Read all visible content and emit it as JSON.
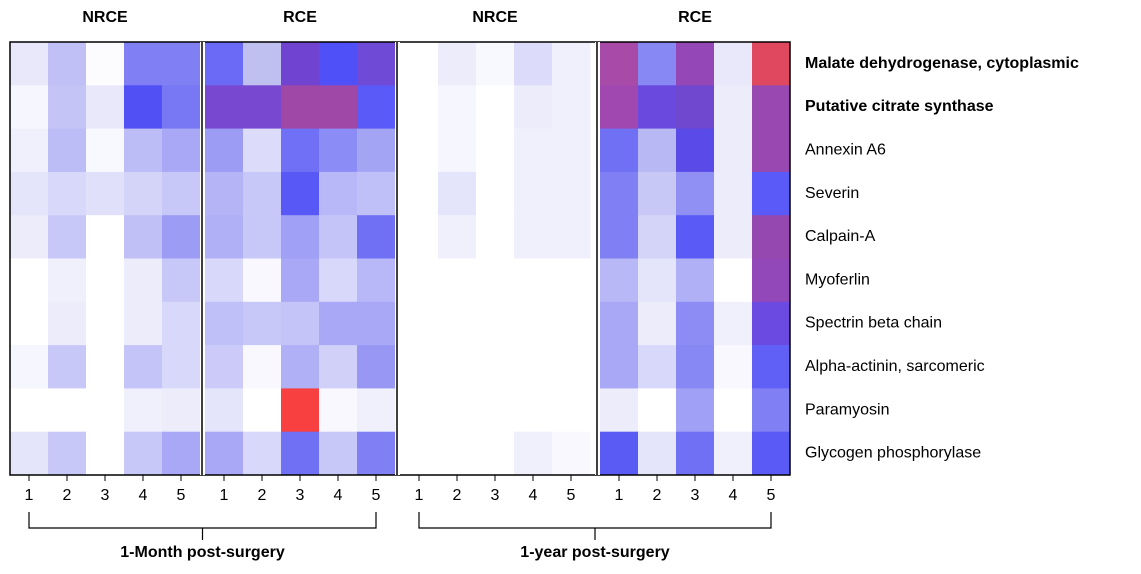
{
  "chart_data": {
    "type": "heatmap",
    "groups": [
      {
        "name": "NRCE",
        "columns": [
          "1",
          "2",
          "3",
          "4",
          "5"
        ]
      },
      {
        "name": "RCE",
        "columns": [
          "1",
          "2",
          "3",
          "4",
          "5"
        ]
      },
      {
        "name": "NRCE",
        "columns": [
          "1",
          "2",
          "3",
          "4",
          "5"
        ]
      },
      {
        "name": "RCE",
        "columns": [
          "1",
          "2",
          "3",
          "4",
          "5"
        ]
      }
    ],
    "periods": [
      {
        "label": "1-Month post-surgery",
        "groups": [
          0,
          1
        ]
      },
      {
        "label": "1-year post-surgery",
        "groups": [
          2,
          3
        ]
      }
    ],
    "rows": [
      "Malate dehydrogenase, cytoplasmic",
      "Putative citrate synthase",
      "Annexin A6",
      "Severin",
      "Calpain-A",
      "Myoferlin",
      "Spectrin beta chain",
      "Alpha-actinin, sarcomeric",
      "Paramyosin",
      "Glycogen phosphorylase"
    ],
    "bold_rows": [
      0,
      1
    ],
    "cells": [
      [
        "#e8e8fa",
        "#c0c0f6",
        "#fcfcff",
        "#8080f4",
        "#8080f4",
        "#6a6af6",
        "#c0c0f0",
        "#7044d0",
        "#5050f8",
        "#6e4ad6",
        "#ffffff",
        "#ececfa",
        "#f8f8ff",
        "#dcdcfa",
        "#f0f0fc",
        "#a84aa8",
        "#8888f4",
        "#9448b8",
        "#e8e8fa",
        "#e04860"
      ],
      [
        "#f6f6fe",
        "#c4c4f6",
        "#e8e8fa",
        "#5050f4",
        "#7878f4",
        "#7848d0",
        "#7848d0",
        "#a048a8",
        "#a048a8",
        "#5a5af8",
        "#ffffff",
        "#f6f6fe",
        "#ffffff",
        "#ececfa",
        "#f0f0fc",
        "#a048b0",
        "#6a4ade",
        "#7048d0",
        "#ececfa",
        "#9848b0"
      ],
      [
        "#f0f0fc",
        "#bcbcf6",
        "#f8f8ff",
        "#bcbcf6",
        "#a8a8f6",
        "#9c9cf4",
        "#dcdcfa",
        "#7070f6",
        "#8c8cf6",
        "#a4a4f4",
        "#ffffff",
        "#f6f6fe",
        "#ffffff",
        "#f0f0fc",
        "#f0f0fc",
        "#7070f4",
        "#b8b8f4",
        "#5a4ae8",
        "#ececfa",
        "#9848b0"
      ],
      [
        "#e4e4fa",
        "#d8d8fa",
        "#e0e0fa",
        "#d4d4f8",
        "#c8c8f8",
        "#b4b4f6",
        "#c8c8f8",
        "#5858f6",
        "#b8b8f8",
        "#c0c0f8",
        "#ffffff",
        "#e4e4fa",
        "#ffffff",
        "#f0f0fc",
        "#f0f0fc",
        "#8080f4",
        "#c8c8f6",
        "#9090f4",
        "#ececfa",
        "#5a5af8"
      ],
      [
        "#ececfa",
        "#c8c8f8",
        "#ffffff",
        "#c0c0f6",
        "#9c9cf4",
        "#b0b0f6",
        "#c8c8f8",
        "#a0a0f6",
        "#c4c4f8",
        "#7070f4",
        "#ffffff",
        "#f0f0fc",
        "#ffffff",
        "#f0f0fc",
        "#f0f0fc",
        "#8080f4",
        "#d4d4f8",
        "#5a5af6",
        "#ececfa",
        "#9448b0"
      ],
      [
        "#ffffff",
        "#f0f0fc",
        "#ffffff",
        "#ececfa",
        "#c8c8f8",
        "#d8d8fa",
        "#f8f8fe",
        "#a8a8f6",
        "#d8d8fa",
        "#b8b8f8",
        "#ffffff",
        "#ffffff",
        "#ffffff",
        "#ffffff",
        "#ffffff",
        "#b8b8f6",
        "#e4e4fa",
        "#b0b0f6",
        "#ffffff",
        "#9248b8"
      ],
      [
        "#ffffff",
        "#ececfa",
        "#ffffff",
        "#ececfa",
        "#d8d8fa",
        "#c0c0f8",
        "#c8c8f8",
        "#c4c4f8",
        "#a8a8f6",
        "#a8a8f6",
        "#ffffff",
        "#ffffff",
        "#ffffff",
        "#ffffff",
        "#ffffff",
        "#a8a8f6",
        "#ececfa",
        "#8c8cf4",
        "#f0f0fc",
        "#6a4ae0"
      ],
      [
        "#f6f6fe",
        "#c8c8f8",
        "#ffffff",
        "#c4c4f8",
        "#d8d8fa",
        "#cccaf8",
        "#f8f8fe",
        "#b0b0f6",
        "#d0d0f8",
        "#9898f4",
        "#ffffff",
        "#ffffff",
        "#ffffff",
        "#ffffff",
        "#ffffff",
        "#a8a8f6",
        "#d8d8fa",
        "#8888f4",
        "#f8f8fe",
        "#6060f6"
      ],
      [
        "#ffffff",
        "#ffffff",
        "#ffffff",
        "#f0f0fc",
        "#ececfa",
        "#e4e4fa",
        "#ffffff",
        "#f84040",
        "#f8f8fe",
        "#f0f0fc",
        "#ffffff",
        "#ffffff",
        "#ffffff",
        "#ffffff",
        "#ffffff",
        "#ececfa",
        "#ffffff",
        "#a0a0f6",
        "#ffffff",
        "#8080f4"
      ],
      [
        "#e4e4fa",
        "#c8c8f8",
        "#ffffff",
        "#c8c8f8",
        "#a8a8f6",
        "#a8a8f6",
        "#d8d8fa",
        "#7070f4",
        "#c8c8f8",
        "#8080f4",
        "#ffffff",
        "#ffffff",
        "#ffffff",
        "#f0f0fc",
        "#f8f8fe",
        "#5a5af4",
        "#e4e4fa",
        "#7070f4",
        "#f0f0fc",
        "#5a5af6"
      ]
    ]
  }
}
